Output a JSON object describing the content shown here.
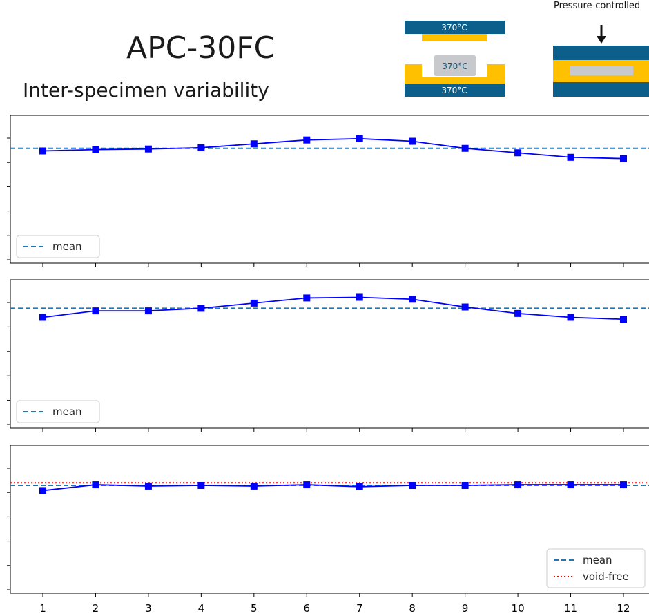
{
  "header": {
    "title": "APC-30FC",
    "subtitle": "Inter-specimen variability"
  },
  "diagram": {
    "mold_temps": [
      "370°C",
      "370°C",
      "370°C"
    ],
    "pressure_label": "Pressure-controlled",
    "colors": {
      "platen": "#0b5f8a",
      "frame": "#ffc000",
      "specimen": "#c7c9cc",
      "temp_text_light": "#ffffff",
      "temp_text_dark": "#0b5f8a"
    }
  },
  "chart_data": [
    {
      "type": "line",
      "x": [
        1,
        2,
        3,
        4,
        5,
        6,
        7,
        8,
        9,
        10,
        11,
        12
      ],
      "series": [
        {
          "values": [
            0.82,
            0.83,
            0.835,
            0.845,
            0.875,
            0.905,
            0.915,
            0.895,
            0.84,
            0.805,
            0.77,
            0.76
          ]
        }
      ],
      "reference_lines": [
        {
          "name": "mean",
          "value": 0.84,
          "style": "dashed",
          "color": "#1f77b4"
        }
      ],
      "ylim": [
        0,
        1
      ],
      "legend": [
        "mean"
      ],
      "legend_position": "lower-left",
      "marker_color": "#0000ff"
    },
    {
      "type": "line",
      "x": [
        1,
        2,
        3,
        4,
        5,
        6,
        7,
        8,
        9,
        10,
        11,
        12
      ],
      "series": [
        {
          "values": [
            0.805,
            0.855,
            0.855,
            0.875,
            0.915,
            0.955,
            0.96,
            0.945,
            0.885,
            0.835,
            0.805,
            0.79
          ]
        }
      ],
      "reference_lines": [
        {
          "name": "mean",
          "value": 0.875,
          "style": "dashed",
          "color": "#1f77b4"
        }
      ],
      "ylim": [
        0,
        1
      ],
      "legend": [
        "mean"
      ],
      "legend_position": "lower-left",
      "marker_color": "#0000ff"
    },
    {
      "type": "line",
      "x": [
        1,
        2,
        3,
        4,
        5,
        6,
        7,
        8,
        9,
        10,
        11,
        12
      ],
      "x_tick_labels": [
        "1",
        "2",
        "3",
        "4",
        "5",
        "6",
        "7",
        "8",
        "9",
        "10",
        "11",
        "12"
      ],
      "series": [
        {
          "values": [
            0.745,
            0.79,
            0.78,
            0.785,
            0.78,
            0.79,
            0.775,
            0.785,
            0.785,
            0.79,
            0.79,
            0.79
          ]
        }
      ],
      "reference_lines": [
        {
          "name": "mean",
          "value": 0.785,
          "style": "dashed",
          "color": "#1f77b4"
        },
        {
          "name": "void-free",
          "value": 0.805,
          "style": "dotted",
          "color": "#ff0000"
        }
      ],
      "ylim": [
        0,
        1
      ],
      "legend": [
        "mean",
        "void-free"
      ],
      "legend_position": "lower-right",
      "marker_color": "#0000ff"
    }
  ]
}
